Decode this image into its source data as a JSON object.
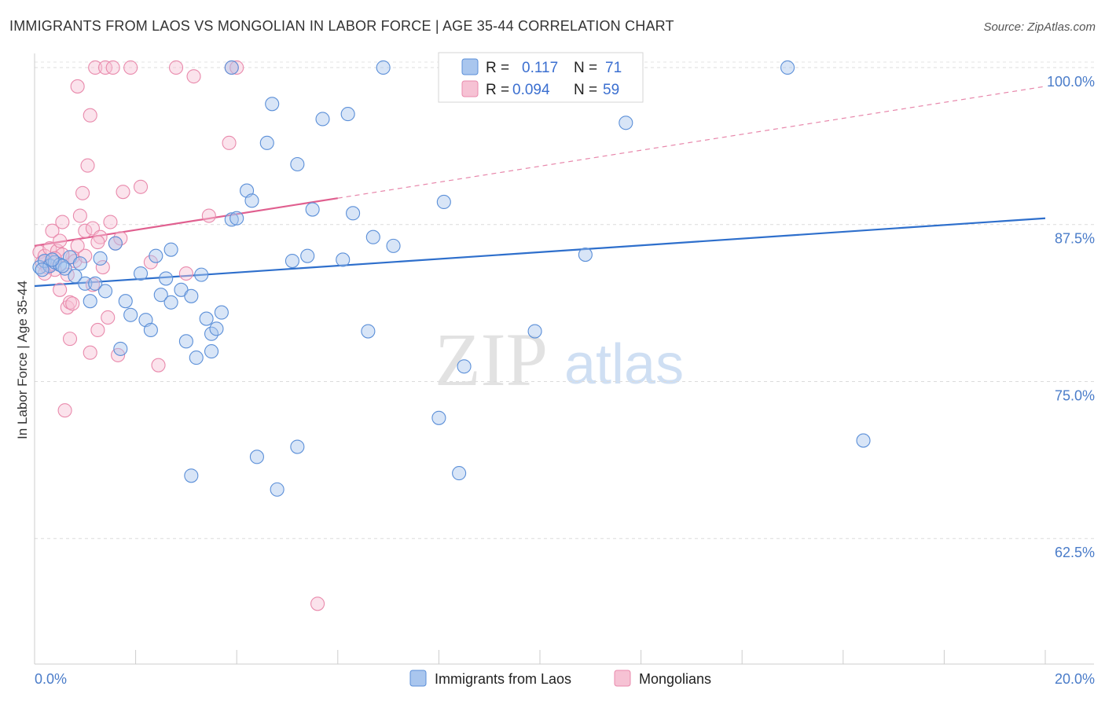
{
  "chart_data": {
    "type": "scatter",
    "title": "IMMIGRANTS FROM LAOS VS MONGOLIAN IN LABOR FORCE | AGE 35-44 CORRELATION CHART",
    "source": "Source: ZipAtlas.com",
    "ylabel": "In Labor Force | Age 35-44",
    "xlim": [
      0,
      20
    ],
    "ylim": [
      52.5,
      101.5
    ],
    "x_ticks": [
      {
        "value": 0,
        "label": "0.0%"
      },
      {
        "value": 20,
        "label": "20.0%"
      }
    ],
    "x_minor_ticks": [
      0,
      2,
      4,
      6,
      8,
      10,
      12,
      14,
      16,
      18,
      20
    ],
    "y_ticks": [
      {
        "value": 100,
        "label": "100.0%"
      },
      {
        "value": 87.5,
        "label": "87.5%"
      },
      {
        "value": 75,
        "label": "75.0%"
      },
      {
        "value": 62.5,
        "label": "62.5%"
      }
    ],
    "watermark": {
      "zip": "ZIP",
      "atlas": "atlas"
    },
    "legend": {
      "rows": [
        {
          "r_label": "R =",
          "r_value": "0.117",
          "n_label": "N =",
          "n_value": "71"
        },
        {
          "r_label": "R =",
          "r_value": "0.094",
          "n_label": "N =",
          "n_value": "59"
        }
      ]
    },
    "series": [
      {
        "name": "Immigrants from Laos",
        "color": "#5b8fd8",
        "fill": "#a9c6ee",
        "trend": {
          "x0": 0,
          "y0": 82.6,
          "x1": 20,
          "y1": 88.0,
          "color": "#2e6fcc",
          "dashed_extension": false
        },
        "points": [
          [
            0.1,
            84.1
          ],
          [
            0.2,
            84.6
          ],
          [
            0.3,
            84.2
          ],
          [
            0.4,
            84.5
          ],
          [
            0.5,
            84.3
          ],
          [
            0.6,
            84.0
          ],
          [
            0.7,
            84.9
          ],
          [
            0.8,
            83.4
          ],
          [
            0.9,
            84.4
          ],
          [
            1.0,
            82.8
          ],
          [
            1.1,
            81.4
          ],
          [
            1.2,
            82.8
          ],
          [
            1.3,
            84.8
          ],
          [
            1.4,
            82.2
          ],
          [
            1.6,
            86.0
          ],
          [
            1.7,
            77.6
          ],
          [
            1.8,
            81.4
          ],
          [
            1.9,
            80.3
          ],
          [
            2.1,
            83.6
          ],
          [
            2.2,
            79.9
          ],
          [
            2.3,
            79.1
          ],
          [
            2.4,
            85.0
          ],
          [
            2.5,
            81.9
          ],
          [
            2.6,
            83.2
          ],
          [
            2.7,
            81.3
          ],
          [
            2.7,
            85.5
          ],
          [
            2.9,
            82.3
          ],
          [
            3.0,
            78.2
          ],
          [
            3.1,
            67.5
          ],
          [
            3.2,
            76.9
          ],
          [
            3.1,
            81.8
          ],
          [
            3.3,
            83.5
          ],
          [
            3.4,
            80.0
          ],
          [
            3.5,
            78.8
          ],
          [
            3.5,
            77.4
          ],
          [
            3.6,
            79.2
          ],
          [
            3.7,
            80.5
          ],
          [
            3.9,
            100.0
          ],
          [
            3.9,
            87.9
          ],
          [
            4.0,
            88.0
          ],
          [
            4.2,
            90.2
          ],
          [
            4.3,
            89.4
          ],
          [
            4.4,
            69.0
          ],
          [
            4.6,
            94.0
          ],
          [
            4.7,
            97.1
          ],
          [
            4.8,
            66.4
          ],
          [
            5.1,
            84.6
          ],
          [
            5.2,
            92.3
          ],
          [
            5.2,
            69.8
          ],
          [
            5.4,
            85.0
          ],
          [
            5.5,
            88.7
          ],
          [
            5.7,
            95.9
          ],
          [
            6.1,
            84.7
          ],
          [
            6.2,
            96.3
          ],
          [
            6.3,
            88.4
          ],
          [
            6.6,
            79.0
          ],
          [
            6.7,
            86.5
          ],
          [
            6.9,
            100.0
          ],
          [
            7.1,
            85.8
          ],
          [
            8.0,
            72.1
          ],
          [
            8.1,
            89.3
          ],
          [
            8.4,
            67.7
          ],
          [
            8.5,
            76.2
          ],
          [
            9.9,
            79.0
          ],
          [
            10.9,
            85.1
          ],
          [
            11.7,
            95.6
          ],
          [
            14.9,
            100.0
          ],
          [
            16.4,
            70.3
          ],
          [
            0.15,
            83.9
          ],
          [
            0.55,
            84.2
          ],
          [
            0.35,
            84.7
          ]
        ]
      },
      {
        "name": "Mongolians",
        "color": "#e98aac",
        "fill": "#f6c2d4",
        "trend": {
          "x0": 0,
          "y0": 85.8,
          "x1": 6.0,
          "y1": 89.6,
          "x_ext": 20,
          "y_ext": 98.5,
          "color": "#e05f8f",
          "dashed_extension": true
        },
        "points": [
          [
            0.1,
            85.3
          ],
          [
            0.15,
            84.5
          ],
          [
            0.2,
            85.0
          ],
          [
            0.25,
            84.1
          ],
          [
            0.3,
            85.6
          ],
          [
            0.35,
            87.0
          ],
          [
            0.4,
            83.9
          ],
          [
            0.45,
            85.4
          ],
          [
            0.5,
            86.2
          ],
          [
            0.5,
            82.3
          ],
          [
            0.55,
            87.7
          ],
          [
            0.6,
            72.7
          ],
          [
            0.65,
            80.9
          ],
          [
            0.7,
            81.3
          ],
          [
            0.7,
            78.4
          ],
          [
            0.75,
            84.9
          ],
          [
            0.8,
            84.6
          ],
          [
            0.85,
            98.5
          ],
          [
            0.9,
            88.2
          ],
          [
            0.95,
            90.0
          ],
          [
            1.0,
            87.0
          ],
          [
            1.0,
            85.0
          ],
          [
            1.05,
            92.2
          ],
          [
            1.1,
            96.2
          ],
          [
            1.1,
            77.3
          ],
          [
            1.15,
            87.2
          ],
          [
            1.2,
            100.0
          ],
          [
            1.25,
            79.1
          ],
          [
            1.3,
            86.5
          ],
          [
            1.35,
            84.1
          ],
          [
            1.4,
            100.0
          ],
          [
            1.45,
            80.1
          ],
          [
            1.5,
            87.7
          ],
          [
            1.55,
            100.0
          ],
          [
            1.6,
            86.0
          ],
          [
            1.65,
            77.1
          ],
          [
            1.7,
            86.4
          ],
          [
            1.75,
            90.1
          ],
          [
            1.9,
            100.0
          ],
          [
            2.1,
            90.5
          ],
          [
            2.3,
            84.5
          ],
          [
            2.45,
            76.3
          ],
          [
            2.8,
            100.0
          ],
          [
            3.0,
            83.6
          ],
          [
            3.15,
            99.3
          ],
          [
            3.45,
            88.2
          ],
          [
            3.85,
            94.0
          ],
          [
            3.9,
            100.0
          ],
          [
            4.0,
            100.0
          ],
          [
            5.6,
            57.3
          ],
          [
            0.3,
            84.3
          ],
          [
            0.55,
            85.1
          ],
          [
            0.65,
            83.5
          ],
          [
            0.75,
            81.2
          ],
          [
            0.85,
            85.8
          ],
          [
            1.15,
            82.7
          ],
          [
            1.25,
            86.1
          ],
          [
            0.2,
            83.6
          ],
          [
            0.4,
            84.8
          ]
        ]
      }
    ]
  }
}
